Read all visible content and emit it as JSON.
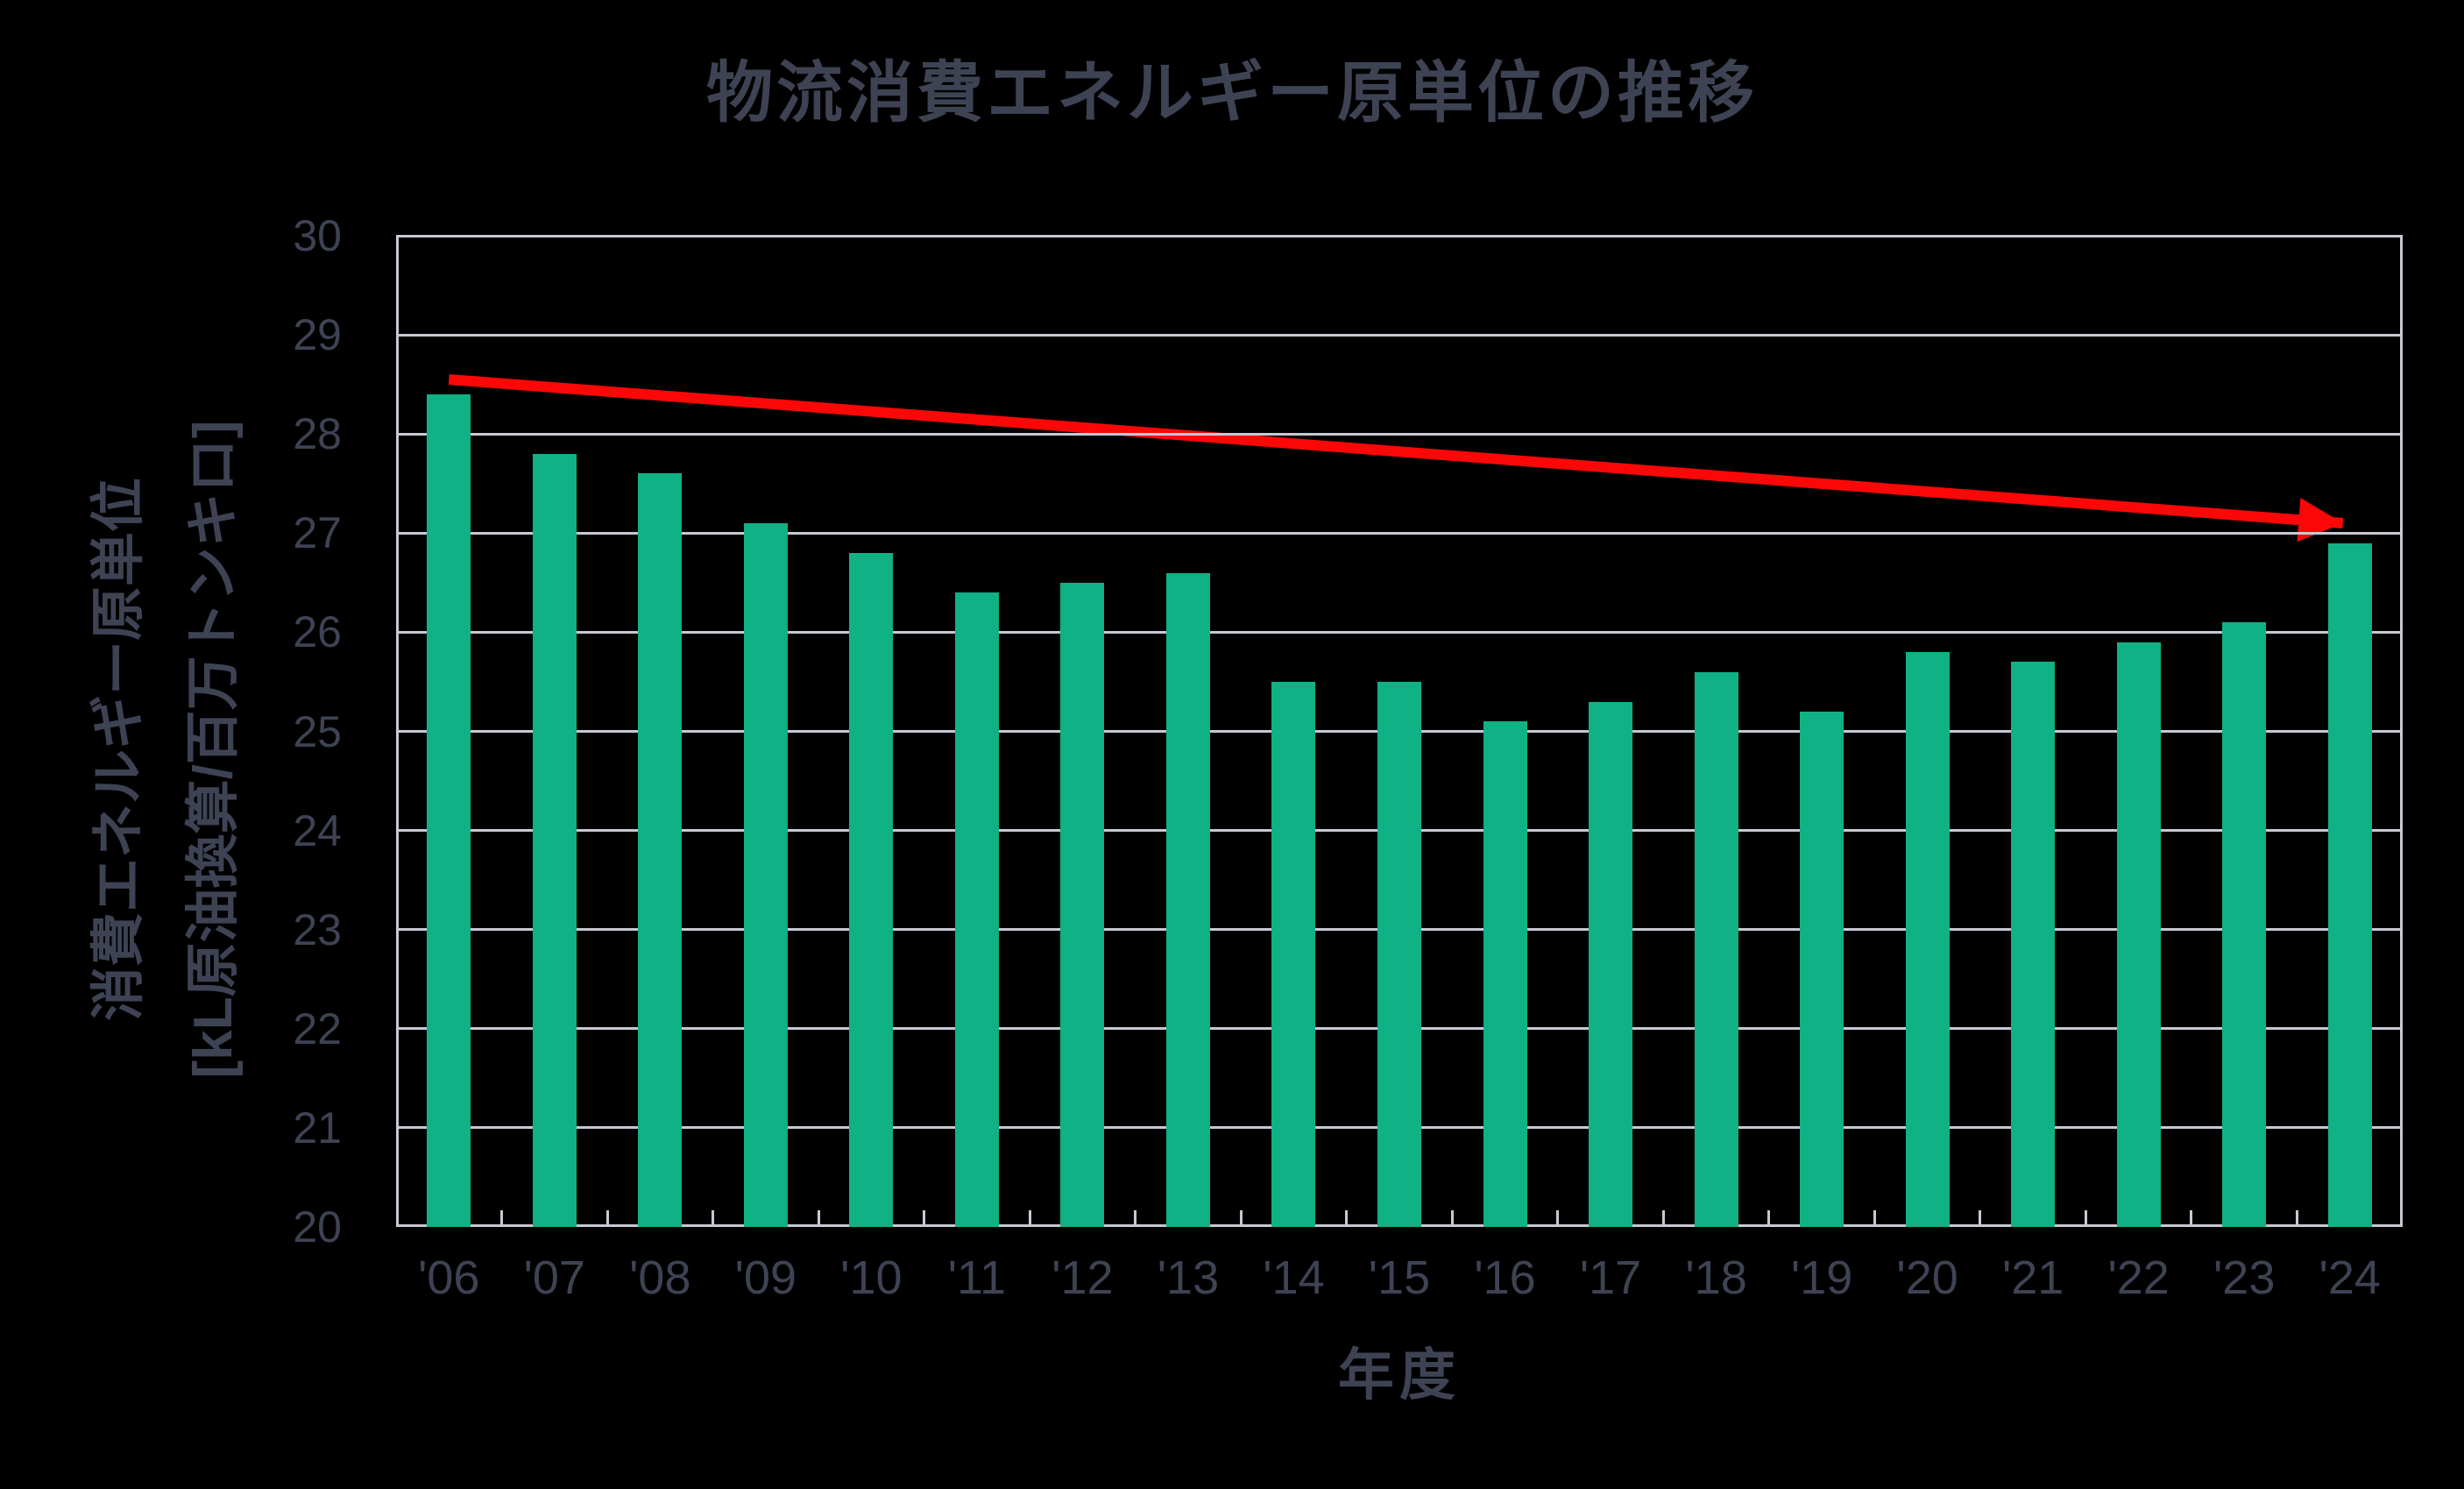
{
  "title": "物流消費エネルギー原単位の推移",
  "colors": {
    "background": "#000000",
    "text": "#3e4354",
    "bar": "#10b185",
    "grid": "#c6c9d4",
    "arrow": "#fb0707"
  },
  "chart_data": {
    "type": "bar",
    "title": "物流消費エネルギー原単位の推移",
    "xlabel": "年度",
    "ylabel_line1": "消費エネルギー原単位",
    "ylabel_line2": "[kL原油換算/百万トンキロ]",
    "categories": [
      "'06",
      "'07",
      "'08",
      "'09",
      "'10",
      "'11",
      "'12",
      "'13",
      "'14",
      "'15",
      "'16",
      "'17",
      "'18",
      "'19",
      "'20",
      "'21",
      "'22",
      "'23",
      "'24"
    ],
    "values": [
      28.4,
      27.8,
      27.6,
      27.1,
      26.8,
      26.4,
      26.5,
      26.6,
      25.5,
      25.5,
      25.1,
      25.3,
      25.6,
      25.2,
      25.8,
      25.7,
      25.9,
      26.1,
      26.9
    ],
    "ylim": [
      20,
      30
    ],
    "yticks": [
      30,
      29,
      28,
      27,
      26,
      25,
      24,
      23,
      22,
      21,
      20
    ],
    "grid": "horizontal",
    "legend": "none",
    "annotations": [
      {
        "type": "arrow",
        "description": "declining trend arrow",
        "from": {
          "category_index": 0,
          "value": 28.55
        },
        "to": {
          "category_index": 18,
          "value": 27.1
        }
      }
    ]
  }
}
